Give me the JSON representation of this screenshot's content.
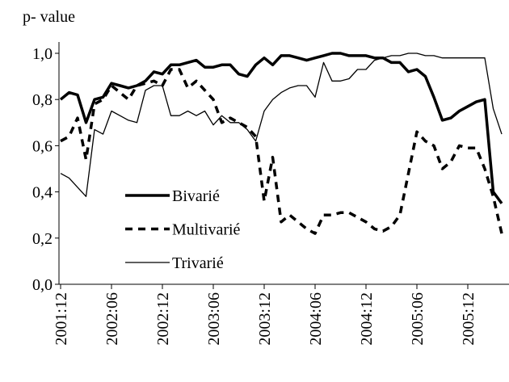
{
  "chart_data": {
    "type": "line",
    "y_label": "p- value",
    "categories": [
      "2001:12",
      null,
      null,
      null,
      null,
      null,
      "2002:06",
      null,
      null,
      null,
      null,
      null,
      "2002:12",
      null,
      null,
      null,
      null,
      null,
      "2003:06",
      null,
      null,
      null,
      null,
      null,
      "2003:12",
      null,
      null,
      null,
      null,
      null,
      "2004:06",
      null,
      null,
      null,
      null,
      null,
      "2004:12",
      null,
      null,
      null,
      null,
      null,
      "2005:06",
      null,
      null,
      null,
      null,
      null,
      "2005:12",
      null,
      null,
      null,
      null
    ],
    "series": [
      {
        "name": "Bivarié",
        "color": "#000000",
        "width": 3.5,
        "dash": "none",
        "values": [
          0.8,
          0.83,
          0.82,
          0.7,
          0.8,
          0.81,
          0.87,
          0.86,
          0.85,
          0.86,
          0.88,
          0.92,
          0.91,
          0.95,
          0.95,
          0.96,
          0.97,
          0.94,
          0.94,
          0.95,
          0.95,
          0.91,
          0.9,
          0.95,
          0.98,
          0.95,
          0.99,
          0.99,
          0.98,
          0.97,
          0.98,
          0.99,
          1.0,
          1.0,
          0.99,
          0.99,
          0.99,
          0.98,
          0.98,
          0.96,
          0.96,
          0.92,
          0.93,
          0.9,
          0.81,
          0.71,
          0.72,
          0.75,
          0.77,
          0.79,
          0.8,
          0.4,
          0.35
        ]
      },
      {
        "name": "Multivarié",
        "color": "#000000",
        "width": 3.5,
        "dash": "9 7",
        "values": [
          0.62,
          0.64,
          0.72,
          0.54,
          0.78,
          0.8,
          0.86,
          0.83,
          0.8,
          0.86,
          0.87,
          0.88,
          0.86,
          0.93,
          0.93,
          0.85,
          0.88,
          0.84,
          0.8,
          0.7,
          0.72,
          0.7,
          0.68,
          0.64,
          0.36,
          0.55,
          0.27,
          0.3,
          0.27,
          0.24,
          0.22,
          0.3,
          0.3,
          0.31,
          0.31,
          0.29,
          0.27,
          0.24,
          0.23,
          0.25,
          0.3,
          0.48,
          0.66,
          0.62,
          0.6,
          0.5,
          0.53,
          0.6,
          0.59,
          0.59,
          0.5,
          0.38,
          0.22
        ]
      },
      {
        "name": "Trivarié",
        "color": "#000000",
        "width": 1.3,
        "dash": "none",
        "values": [
          0.48,
          0.46,
          0.42,
          0.38,
          0.67,
          0.65,
          0.75,
          0.73,
          0.71,
          0.7,
          0.84,
          0.86,
          0.86,
          0.73,
          0.73,
          0.75,
          0.73,
          0.75,
          0.69,
          0.73,
          0.7,
          0.7,
          0.67,
          0.62,
          0.75,
          0.8,
          0.83,
          0.85,
          0.86,
          0.86,
          0.81,
          0.96,
          0.88,
          0.88,
          0.89,
          0.93,
          0.93,
          0.97,
          0.98,
          0.99,
          0.99,
          1.0,
          1.0,
          0.99,
          0.99,
          0.98,
          0.98,
          0.98,
          0.98,
          0.98,
          0.98,
          0.76,
          0.65
        ]
      }
    ],
    "ylim": [
      0,
      1.0
    ],
    "yticks": [
      {
        "value": 0,
        "label": "0,0"
      },
      {
        "value": 0.2,
        "label": "0,2"
      },
      {
        "value": 0.4,
        "label": "0,4"
      },
      {
        "value": 0.6,
        "label": "0,6"
      },
      {
        "value": 0.8,
        "label": "0,8"
      },
      {
        "value": 1.0,
        "label": "1,0"
      }
    ],
    "grid": false,
    "legend": "lower left"
  }
}
